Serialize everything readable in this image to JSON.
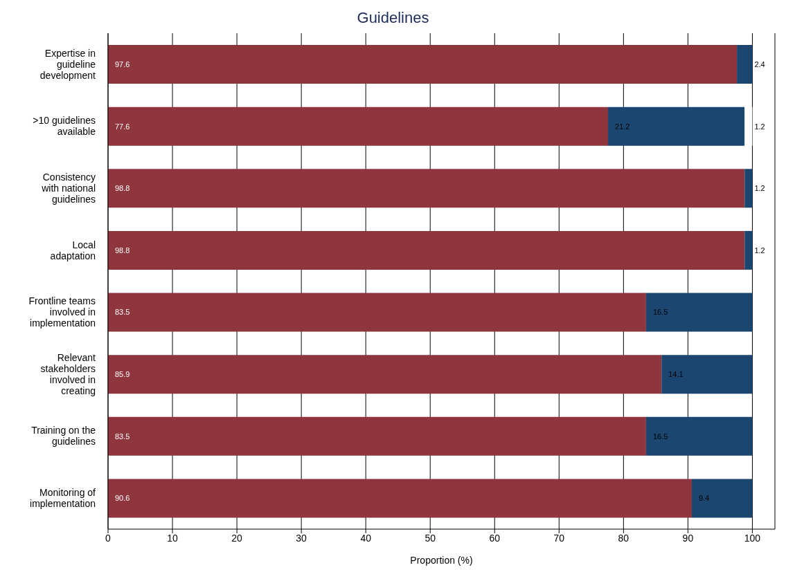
{
  "chart_data": {
    "type": "bar",
    "orientation": "horizontal",
    "stacked": true,
    "title": "Guidelines",
    "xlabel": "Proportion (%)",
    "categories": [
      "Expertise in guideline development",
      ">10 guidelines available",
      "Consistency with national guidelines",
      "Local adaptation",
      "Frontline teams involved in implementation",
      "Relevant stakeholders involved in creating",
      "Training on the guidelines",
      "Monitoring of implementation"
    ],
    "series": [
      {
        "color": "#8e353d",
        "values": [
          97.6,
          77.6,
          98.8,
          98.8,
          83.5,
          85.9,
          83.5,
          90.6
        ]
      },
      {
        "color": "#1a4670",
        "values": [
          2.4,
          21.2,
          1.2,
          1.2,
          16.5,
          14.1,
          16.5,
          9.4
        ]
      },
      {
        "color": "#ffffff",
        "values": [
          null,
          1.2,
          null,
          null,
          null,
          null,
          null,
          null
        ]
      }
    ],
    "xlim": [
      0,
      103.5
    ],
    "xticks": [
      0,
      10,
      20,
      30,
      40,
      50,
      60,
      70,
      80,
      90,
      100
    ],
    "grid": "x",
    "legend": false,
    "data_labels": true
  }
}
